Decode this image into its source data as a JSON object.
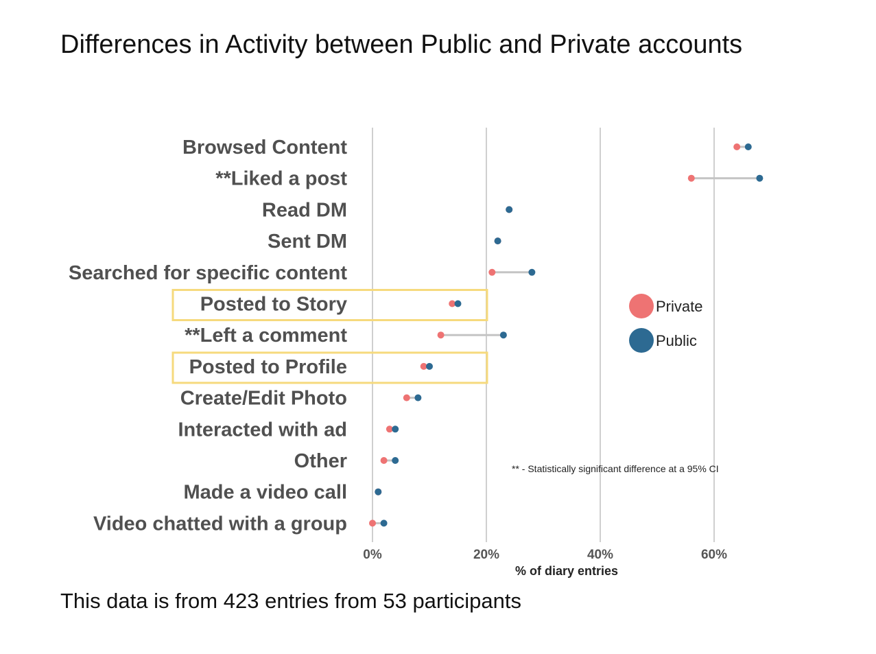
{
  "title": "Differences in Activity between Public and Private accounts",
  "footer": "This data is from 423 entries from 53 participants",
  "chart_data": {
    "type": "dumbbell",
    "categories": [
      "Browsed Content",
      "**Liked a post",
      "Read DM",
      "Sent DM",
      "Searched for specific content",
      "Posted to Story",
      "**Left a comment",
      "Posted to Profile",
      "Create/Edit Photo",
      "Interacted with ad",
      "Other",
      "Made a video call",
      "Video chatted with a group"
    ],
    "series": [
      {
        "name": "Private",
        "color": "#EE7373",
        "values": [
          64,
          56,
          24,
          22,
          21,
          14,
          12,
          9,
          6,
          3,
          2,
          1,
          0
        ]
      },
      {
        "name": "Public",
        "color": "#2D6A92",
        "values": [
          66,
          68,
          24,
          22,
          28,
          15,
          23,
          10,
          8,
          4,
          4,
          1,
          2
        ]
      }
    ],
    "xlabel": "% of diary entries",
    "xticks": [
      "0%",
      "20%",
      "40%",
      "60%"
    ],
    "xlim": [
      0,
      68
    ],
    "grid": "vertical",
    "legend_position": "right",
    "highlighted": [
      "Posted to Story",
      "Posted to Profile"
    ],
    "highlight_color": "#F6DA7D",
    "connector_color": "#C4C4C4",
    "gridline_color": "#CFCFCF",
    "annotation": "** - Statistically significant difference at a 95% CI"
  }
}
